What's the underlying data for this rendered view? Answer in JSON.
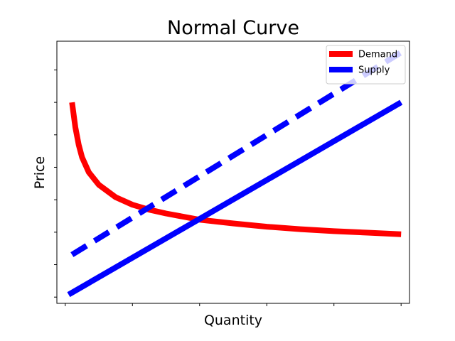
{
  "chart_data": {
    "type": "line",
    "title": "Normal Curve",
    "xlabel": "Quantity",
    "ylabel": "Price",
    "xlim": [
      -0.25,
      10.25
    ],
    "ylim": [
      -0.25,
      10.25
    ],
    "xticks": [
      0,
      2,
      4,
      6,
      8,
      10
    ],
    "yticks": [
      0,
      1.3,
      2.6,
      3.9,
      5.2,
      6.5,
      7.8,
      9.1
    ],
    "show_tick_labels": false,
    "grid": false,
    "legend_position": "top-right",
    "series": [
      {
        "name": "Demand",
        "color": "#ff0000",
        "style": "solid",
        "x": [
          0.2,
          0.3,
          0.4,
          0.5,
          0.7,
          1.0,
          1.5,
          2.0,
          2.5,
          3.0,
          4.0,
          5.0,
          6.0,
          7.0,
          8.0,
          9.0,
          10.0
        ],
        "y": [
          7.8,
          6.8,
          6.1,
          5.6,
          5.0,
          4.5,
          4.0,
          3.7,
          3.5,
          3.35,
          3.1,
          2.95,
          2.82,
          2.72,
          2.64,
          2.58,
          2.52
        ]
      },
      {
        "name": "Supply",
        "color": "#0000ff",
        "style": "solid",
        "x": [
          0.1,
          10.0
        ],
        "y": [
          0.1,
          7.8
        ]
      },
      {
        "name": "",
        "color": "#0000ff",
        "style": "dashed",
        "x": [
          0.2,
          10.0
        ],
        "y": [
          1.7,
          9.8
        ]
      }
    ]
  }
}
